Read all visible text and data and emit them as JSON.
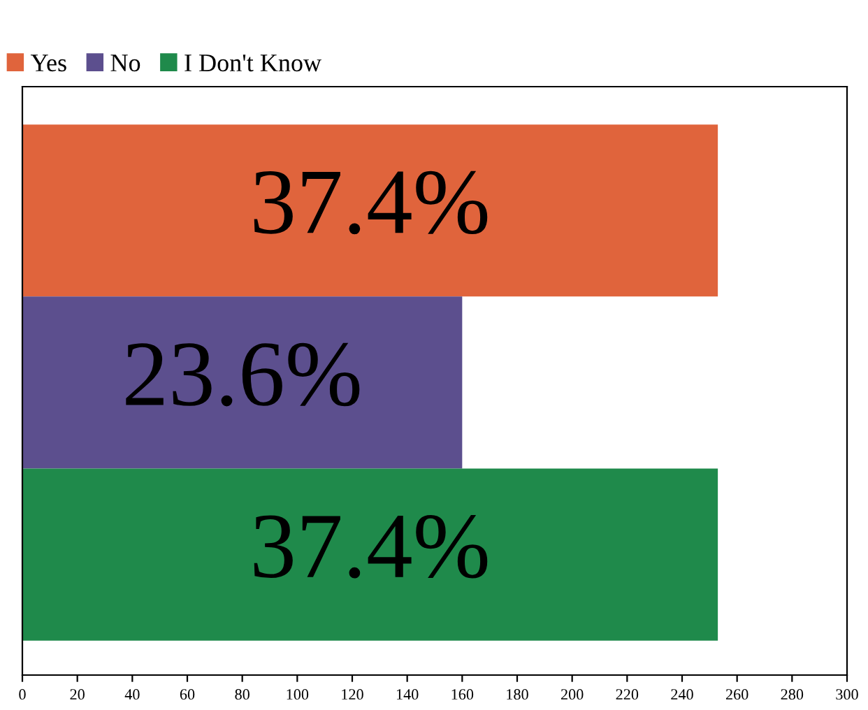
{
  "chart_data": {
    "type": "bar",
    "orientation": "horizontal",
    "categories": [
      null,
      null,
      null
    ],
    "series": [
      {
        "name": "Yes",
        "color": "#e0643c",
        "values": [
          253,
          null,
          null
        ]
      },
      {
        "name": "No",
        "color": "#5c4f8e",
        "values": [
          null,
          160,
          null
        ]
      },
      {
        "name": "I Don't Know",
        "color": "#1f8a4b",
        "values": [
          null,
          null,
          253
        ]
      }
    ],
    "annotations": [
      "37.4%",
      "23.6%",
      "37.4%"
    ],
    "xlim": [
      0,
      300
    ],
    "xticks": [
      0,
      20,
      40,
      60,
      80,
      100,
      120,
      140,
      160,
      180,
      200,
      220,
      240,
      260,
      280,
      300
    ],
    "grid": false,
    "legend": "top left"
  }
}
